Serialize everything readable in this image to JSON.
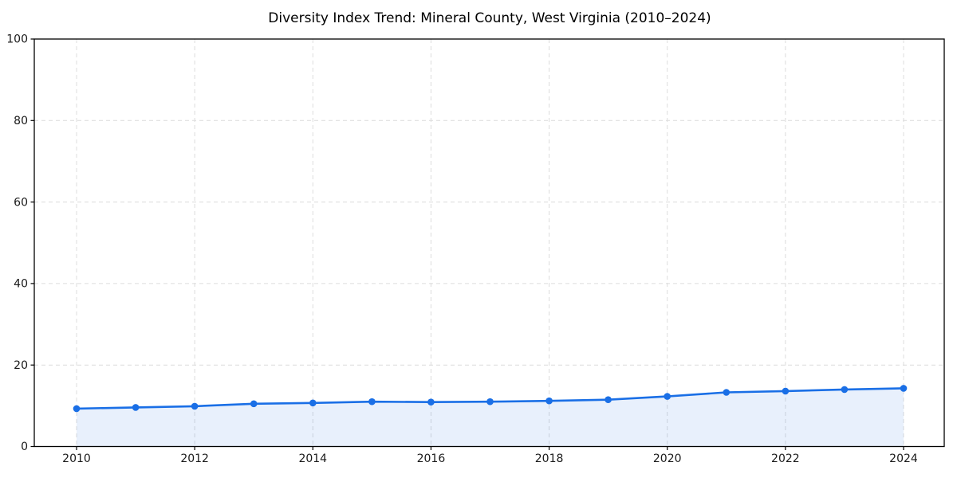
{
  "chart_data": {
    "type": "area",
    "title": "Diversity Index Trend: Mineral County, West Virginia (2010–2024)",
    "xlabel": "",
    "ylabel": "",
    "x": [
      2010,
      2011,
      2012,
      2013,
      2014,
      2015,
      2016,
      2017,
      2018,
      2019,
      2020,
      2021,
      2022,
      2023,
      2024
    ],
    "series": [
      {
        "name": "Diversity Index",
        "values": [
          9.3,
          9.6,
          9.9,
          10.5,
          10.7,
          11.0,
          10.9,
          11.0,
          11.2,
          11.5,
          12.3,
          13.3,
          13.6,
          14.0,
          14.3
        ]
      }
    ],
    "xlim": [
      2010,
      2024
    ],
    "ylim": [
      0,
      100
    ],
    "xticks": [
      2010,
      2012,
      2014,
      2016,
      2018,
      2020,
      2022,
      2024
    ],
    "yticks": [
      0,
      20,
      40,
      60,
      80,
      100
    ],
    "grid": true,
    "grid_style": "dashed",
    "legend": "none",
    "marker": "circle",
    "colors": {
      "line": "#1a6fe6",
      "marker": "#1a6fe6",
      "area_fill": "rgba(26,111,230,0.10)",
      "grid": "#dcdcdc",
      "axis": "#000000",
      "tick_label": "#1a1a1a",
      "title": "#000000",
      "background": "#ffffff"
    }
  }
}
